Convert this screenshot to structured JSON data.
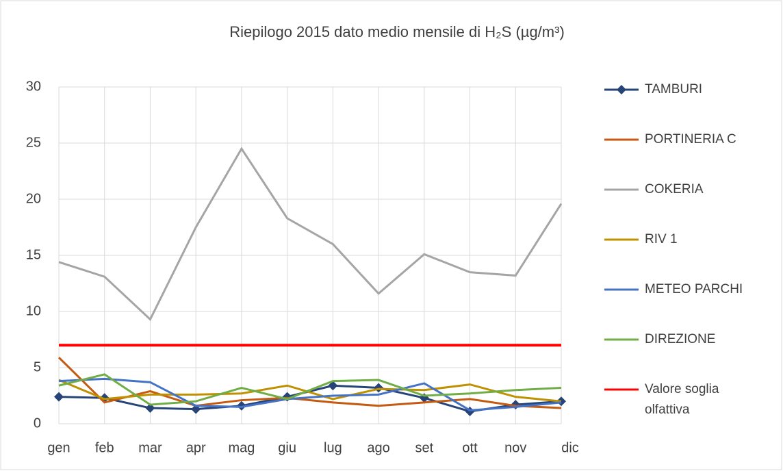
{
  "chart_data": {
    "type": "line",
    "title": "Riepilogo 2015 dato medio mensile di H₂S (µg/m³)",
    "categories": [
      "gen",
      "feb",
      "mar",
      "apr",
      "mag",
      "giu",
      "lug",
      "ago",
      "set",
      "ott",
      "nov",
      "dic"
    ],
    "ylim": [
      0,
      30
    ],
    "yticks": [
      0,
      5,
      10,
      15,
      20,
      25,
      30
    ],
    "grid": true,
    "legend": "right",
    "series": [
      {
        "name": "TAMBURI",
        "color": "#264478",
        "marker": "diamond",
        "values": [
          2.4,
          2.3,
          1.4,
          1.3,
          1.6,
          2.4,
          3.4,
          3.2,
          2.3,
          1.1,
          1.7,
          2.0
        ]
      },
      {
        "name": "PORTINERIA C",
        "color": "#c55a11",
        "values": [
          5.9,
          1.9,
          2.9,
          1.6,
          2.1,
          2.3,
          1.9,
          1.6,
          1.9,
          2.2,
          1.6,
          1.4
        ]
      },
      {
        "name": "COKERIA",
        "color": "#a5a5a5",
        "values": [
          14.4,
          13.1,
          9.3,
          17.5,
          24.5,
          18.3,
          16.0,
          11.6,
          15.1,
          13.5,
          13.2,
          19.6
        ]
      },
      {
        "name": "RIV 1",
        "color": "#bf9000",
        "values": [
          3.9,
          2.2,
          2.6,
          2.6,
          2.7,
          3.4,
          2.2,
          3.1,
          3.0,
          3.5,
          2.4,
          2.0
        ]
      },
      {
        "name": "METEO PARCHI",
        "color": "#4472c4",
        "values": [
          3.8,
          4.0,
          3.7,
          1.6,
          1.5,
          2.2,
          2.5,
          2.6,
          3.6,
          1.2,
          1.5,
          1.9
        ]
      },
      {
        "name": "DIREZIONE",
        "color": "#70ad47",
        "values": [
          3.4,
          4.4,
          1.7,
          2.0,
          3.2,
          2.2,
          3.8,
          3.9,
          2.5,
          2.7,
          3.0,
          3.2
        ]
      },
      {
        "name": "Valore soglia olfattiva",
        "color": "#ff0000",
        "values": [
          7,
          7,
          7,
          7,
          7,
          7,
          7,
          7,
          7,
          7,
          7,
          7
        ]
      }
    ]
  }
}
